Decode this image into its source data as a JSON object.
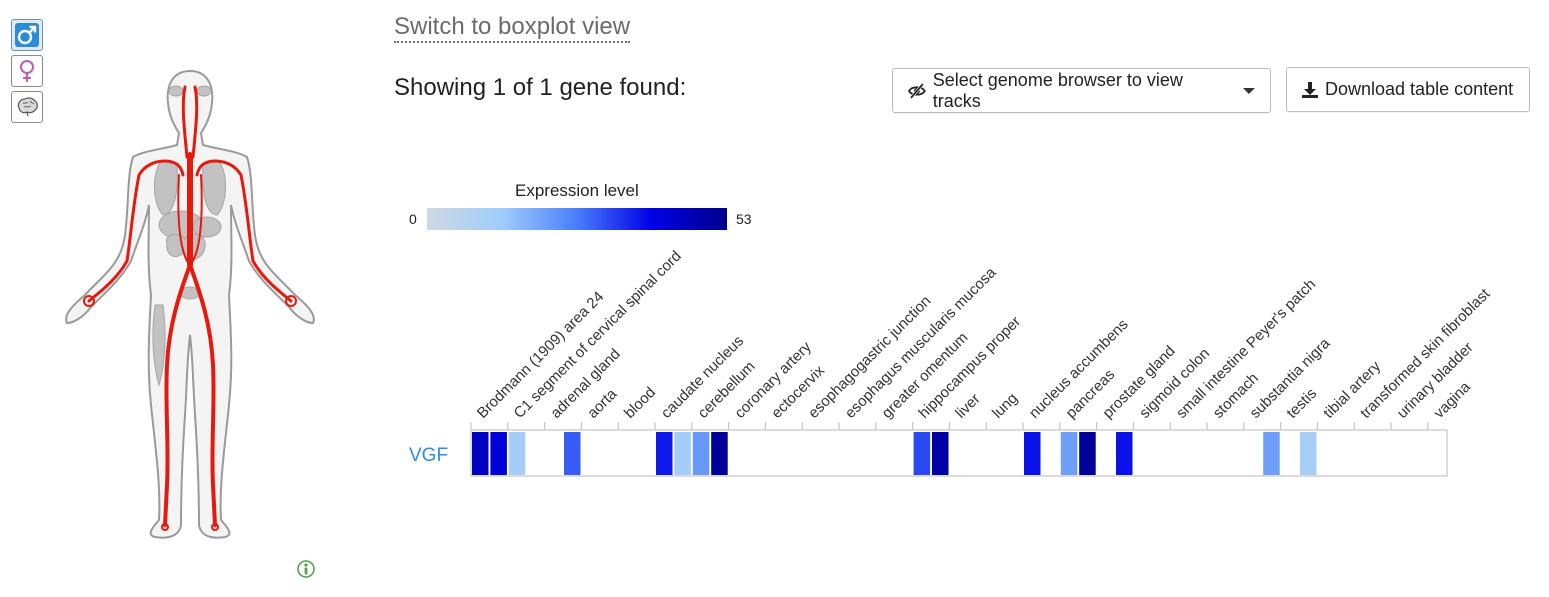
{
  "toolbar": {
    "views": [
      {
        "id": "male",
        "icon": "male-symbol-icon",
        "active": true
      },
      {
        "id": "female",
        "icon": "female-symbol-icon",
        "active": false
      },
      {
        "id": "brain",
        "icon": "brain-icon",
        "active": false
      }
    ]
  },
  "header": {
    "boxplot_link": "Switch to boxplot view",
    "result_count": "Showing 1 of 1 gene found:",
    "genome_button": "Select genome browser to view tracks",
    "download_button": "Download table content"
  },
  "colors": {
    "accent": "#2b8ee8",
    "artery": "#e8190c",
    "scale_low": "#d0d8e2",
    "scale_high": "#00008c"
  },
  "legend": {
    "title": "Expression level",
    "min": "0",
    "max": "53"
  },
  "chart_data": {
    "type": "heatmap",
    "genes": [
      "VGF"
    ],
    "value_range": [
      0,
      53
    ],
    "tissues": [
      "Brodmann (1909) area 24",
      "C1 segment of cervical spinal cord",
      "adrenal gland",
      "aorta",
      "blood",
      "caudate nucleus",
      "cerebellum",
      "coronary artery",
      "ectocervix",
      "esophagogastric junction",
      "esophagus muscularis mucosa",
      "greater omentum",
      "hippocampus proper",
      "liver",
      "lung",
      "nucleus accumbens",
      "pancreas",
      "prostate gland",
      "sigmoid colon",
      "small intestine Peyer's patch",
      "stomach",
      "substantia nigra",
      "testis",
      "tibial artery",
      "transformed skin fibroblast",
      "urinary bladder",
      "vagina"
    ],
    "cells": [
      {
        "col": 0,
        "sub": 0,
        "value": 45
      },
      {
        "col": 0,
        "sub": 1,
        "value": 42
      },
      {
        "col": 1,
        "sub": 0,
        "value": 12
      },
      {
        "col": 2,
        "sub": 1,
        "value": 30
      },
      {
        "col": 5,
        "sub": 0,
        "value": 37
      },
      {
        "col": 5,
        "sub": 1,
        "value": 12
      },
      {
        "col": 6,
        "sub": 0,
        "value": 22
      },
      {
        "col": 6,
        "sub": 1,
        "value": 51
      },
      {
        "col": 12,
        "sub": 0,
        "value": 32
      },
      {
        "col": 12,
        "sub": 1,
        "value": 49
      },
      {
        "col": 15,
        "sub": 0,
        "value": 38
      },
      {
        "col": 16,
        "sub": 0,
        "value": 21
      },
      {
        "col": 16,
        "sub": 1,
        "value": 51
      },
      {
        "col": 17,
        "sub": 1,
        "value": 38
      },
      {
        "col": 21,
        "sub": 1,
        "value": 21
      },
      {
        "col": 22,
        "sub": 1,
        "value": 11
      }
    ]
  }
}
